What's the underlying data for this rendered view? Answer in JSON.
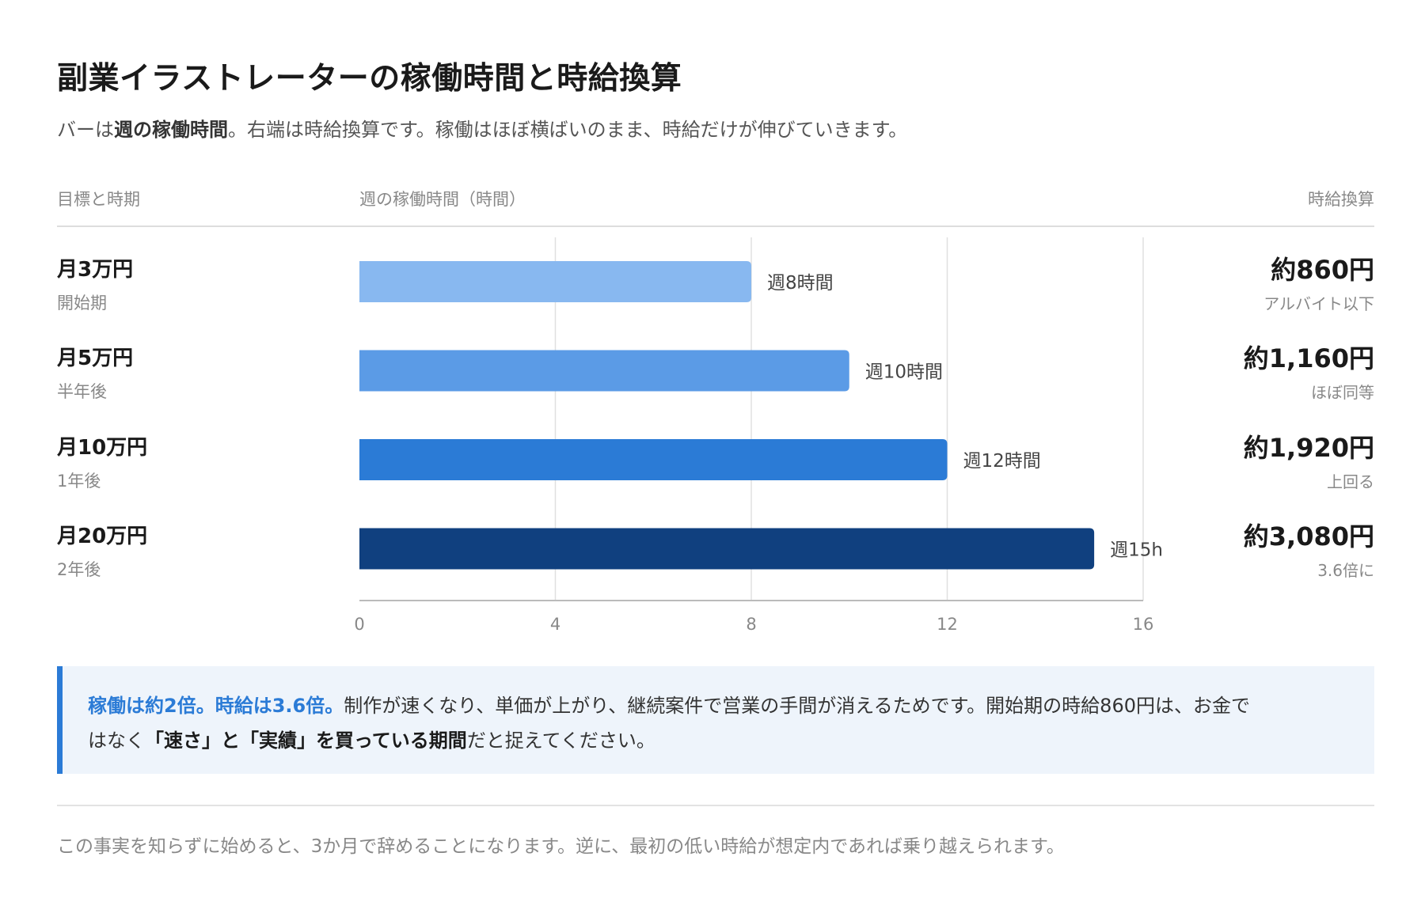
{
  "header": {
    "title": "副業イラストレーターの稼働時間と時給換算",
    "subtitle_pre": "バーは",
    "subtitle_bold": "週の稼働時間",
    "subtitle_post": "。右端は時給換算です。稼働はほぼ横ばいのまま、時給だけが伸びていきます。"
  },
  "columns": {
    "goal": "目標と時期",
    "hours": "週の稼働時間（時間）",
    "rate": "時給換算"
  },
  "rows": [
    {
      "goal": "月3万円",
      "period": "開始期",
      "rate": "約860円",
      "note": "アルバイト以下"
    },
    {
      "goal": "月5万円",
      "period": "半年後",
      "rate": "約1,160円",
      "note": "ほぼ同等"
    },
    {
      "goal": "月10万円",
      "period": "1年後",
      "rate": "約1,920円",
      "note": "上回る"
    },
    {
      "goal": "月20万円",
      "period": "2年後",
      "rate": "約3,080円",
      "note": "3.6倍に"
    }
  ],
  "chart_data": {
    "type": "bar",
    "orientation": "horizontal",
    "categories": [
      "月3万円",
      "月5万円",
      "月10万円",
      "月20万円"
    ],
    "values": [
      8,
      10,
      12,
      15
    ],
    "data_labels": [
      "週8時間",
      "週10時間",
      "週12時間",
      "週15h"
    ],
    "xlabel": "週の稼働時間（時間）",
    "xlim": [
      0,
      16
    ],
    "xticks": [
      0,
      4,
      8,
      12,
      16
    ],
    "grid": true,
    "colors": [
      "#88b8f0",
      "#5b9be6",
      "#2b7bd6",
      "#10407f"
    ]
  },
  "callout": {
    "hl": "稼働は約2倍。時給は3.6倍。",
    "text1": "制作が速くなり、単価が上がり、継続案件で営業の手間が消えるためです。開始期の時給860円は、お金で",
    "text2": "はなく",
    "bold": "「速さ」と「実績」を買っている期間",
    "text3": "だと捉えてください。"
  },
  "footnote": "この事実を知らずに始めると、3か月で辞めることになります。逆に、最初の低い時給が想定内であれば乗り越えられます。"
}
